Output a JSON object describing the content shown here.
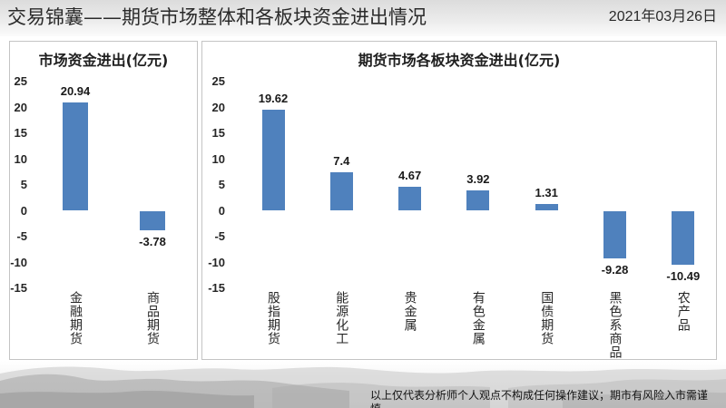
{
  "header": {
    "title": "交易锦囊——期货市场整体和各板块资金进出情况",
    "date": "2021年03月26日"
  },
  "chart_data": [
    {
      "type": "bar",
      "title": "市场资金进出(亿元)",
      "categories": [
        "金融期货",
        "商品期货"
      ],
      "values": [
        20.94,
        -3.78
      ],
      "ylim": [
        -15,
        25
      ],
      "yticks": [
        25,
        20,
        15,
        10,
        5,
        0,
        -5,
        -10,
        -15
      ],
      "grid": false,
      "color": "#4f81bd"
    },
    {
      "type": "bar",
      "title": "期货市场各板块资金进出(亿元)",
      "categories": [
        "股指期货",
        "能源化工",
        "贵金属",
        "有色金属",
        "国债期货",
        "黑色系商品",
        "农产品"
      ],
      "values": [
        19.62,
        7.4,
        4.67,
        3.92,
        1.31,
        -9.28,
        -10.49
      ],
      "ylim": [
        -15,
        25
      ],
      "yticks": [
        25,
        20,
        15,
        10,
        5,
        0,
        -5,
        -10,
        -15
      ],
      "grid": false,
      "color": "#4f81bd"
    }
  ],
  "footer": {
    "disclaimer": "以上仅代表分析师个人观点不构成任何操作建议；期市有风险入市需谨慎"
  }
}
